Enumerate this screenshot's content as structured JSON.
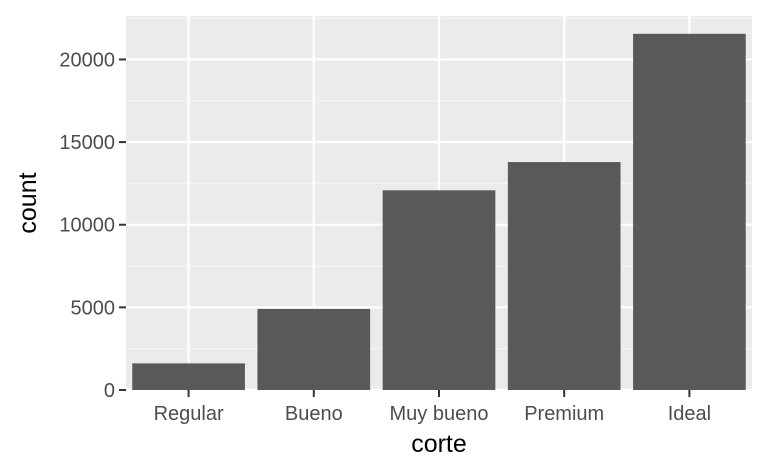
{
  "chart_data": {
    "type": "bar",
    "title": "",
    "xlabel": "corte",
    "ylabel": "count",
    "categories": [
      "Regular",
      "Bueno",
      "Muy bueno",
      "Premium",
      "Ideal"
    ],
    "values": [
      1610,
      4906,
      12082,
      13791,
      21551
    ],
    "ylim": [
      0,
      22629
    ],
    "yticks": [
      0,
      5000,
      10000,
      15000,
      20000
    ],
    "ytick_labels": [
      "0",
      "5000",
      "10000",
      "15000",
      "20000"
    ],
    "grid": true,
    "legend": "none",
    "colors": {
      "panel_background": "#ebebeb",
      "grid_major": "#ffffff",
      "grid_minor": "#f5f5f5",
      "bar_fill": "#595959",
      "tick_text": "#4d4d4d",
      "tick_mark": "#333333"
    }
  }
}
